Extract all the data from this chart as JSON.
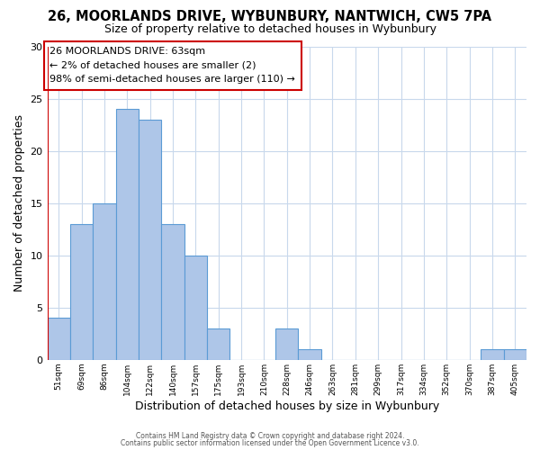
{
  "title": "26, MOORLANDS DRIVE, WYBUNBURY, NANTWICH, CW5 7PA",
  "subtitle": "Size of property relative to detached houses in Wybunbury",
  "xlabel": "Distribution of detached houses by size in Wybunbury",
  "ylabel": "Number of detached properties",
  "bar_labels": [
    "51sqm",
    "69sqm",
    "86sqm",
    "104sqm",
    "122sqm",
    "140sqm",
    "157sqm",
    "175sqm",
    "193sqm",
    "210sqm",
    "228sqm",
    "246sqm",
    "263sqm",
    "281sqm",
    "299sqm",
    "317sqm",
    "334sqm",
    "352sqm",
    "370sqm",
    "387sqm",
    "405sqm"
  ],
  "bar_values": [
    4,
    13,
    15,
    24,
    23,
    13,
    10,
    3,
    0,
    0,
    3,
    1,
    0,
    0,
    0,
    0,
    0,
    0,
    0,
    1,
    1
  ],
  "bar_color": "#aec6e8",
  "bar_edge_color": "#5b9bd5",
  "ylim": [
    0,
    30
  ],
  "yticks": [
    0,
    5,
    10,
    15,
    20,
    25,
    30
  ],
  "marker_color": "#cc0000",
  "annotation_title": "26 MOORLANDS DRIVE: 63sqm",
  "annotation_line1": "← 2% of detached houses are smaller (2)",
  "annotation_line2": "98% of semi-detached houses are larger (110) →",
  "annotation_box_color": "#ffffff",
  "annotation_box_edge": "#cc0000",
  "footer1": "Contains HM Land Registry data © Crown copyright and database right 2024.",
  "footer2": "Contains public sector information licensed under the Open Government Licence v3.0.",
  "background_color": "#ffffff",
  "grid_color": "#c8d8ec"
}
